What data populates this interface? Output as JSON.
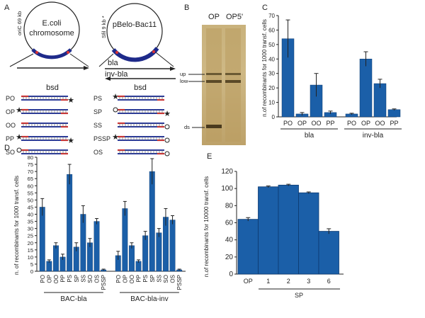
{
  "panels": {
    "A": "A",
    "B": "B",
    "C": "C",
    "D": "D",
    "E": "E"
  },
  "panelA": {
    "left_circle": [
      "E.coli",
      "chromosome"
    ],
    "left_side_label": "oriC 69 kb",
    "right_circle": [
      "pBelo-Bac11"
    ],
    "right_side_label": "Sfil 9 kb *",
    "bsd_left": "bsd",
    "bsd_right": "bsd",
    "bla": "bla",
    "inv_bla": "inv-bla",
    "oligos_left": [
      "PO",
      "OP",
      "OO",
      "PP",
      "SO"
    ],
    "oligos_right": [
      "PS",
      "SP",
      "SS",
      "PSSP",
      "OS"
    ]
  },
  "panelB": {
    "lanes": [
      "OP",
      "OP5'"
    ],
    "bands": [
      "up",
      "low",
      "ds"
    ]
  },
  "chartC": {
    "type": "bar",
    "ylabel": "n.of recombinants for 1000 transf. cells",
    "ylim": [
      0,
      70
    ],
    "yticks": [
      0,
      10,
      20,
      30,
      40,
      50,
      60,
      70
    ],
    "groups": [
      {
        "name": "bla",
        "categories": [
          "PO",
          "OP",
          "OO",
          "PP"
        ],
        "values": [
          54,
          2,
          22,
          3
        ],
        "errors": [
          13,
          1,
          8,
          1
        ]
      },
      {
        "name": "inv-bla",
        "categories": [
          "PO",
          "OP",
          "OO",
          "PP"
        ],
        "values": [
          2,
          40,
          23,
          5
        ],
        "errors": [
          0.5,
          5,
          3,
          0.5
        ]
      }
    ]
  },
  "chartD": {
    "type": "bar",
    "ylabel": "n. of recombinants for 1000 transf. cells",
    "ylim": [
      0,
      80
    ],
    "yticks": [
      0,
      5,
      10,
      15,
      20,
      25,
      30,
      35,
      40,
      45,
      50,
      55,
      60,
      65,
      70,
      75,
      80
    ],
    "groups": [
      {
        "name": "BAC-bla",
        "categories": [
          "PO",
          "OP",
          "OO",
          "PP",
          "PS",
          "SP",
          "SS",
          "SO",
          "OS",
          "PSSP"
        ],
        "values": [
          45,
          7,
          18,
          10,
          68,
          17,
          40,
          20,
          35,
          1
        ],
        "errors": [
          6,
          1,
          2,
          2,
          7,
          3,
          6,
          3,
          2,
          0.5
        ]
      },
      {
        "name": "BAC-bla-inv",
        "categories": [
          "PO",
          "OP",
          "OO",
          "PP",
          "PS",
          "SP",
          "SS",
          "SO",
          "OS",
          "PSSP"
        ],
        "values": [
          11,
          44,
          18,
          7,
          25,
          70,
          27,
          38,
          36,
          1
        ],
        "errors": [
          3,
          5,
          2,
          1,
          3,
          9,
          3,
          6,
          3,
          0.5
        ]
      }
    ]
  },
  "chartE": {
    "type": "bar",
    "ylabel": "n.of recombinants for 10000 transf. cells",
    "ylim": [
      0,
      120
    ],
    "yticks": [
      0,
      20,
      40,
      60,
      80,
      100,
      120
    ],
    "categories": [
      "OP",
      "1",
      "2",
      "3",
      "6"
    ],
    "values": [
      64,
      102,
      104,
      95,
      50
    ],
    "errors": [
      2,
      1,
      1,
      1,
      3
    ],
    "group_label": "SP"
  },
  "colors": {
    "bar": "#1b5fa8",
    "axis": "#222"
  }
}
